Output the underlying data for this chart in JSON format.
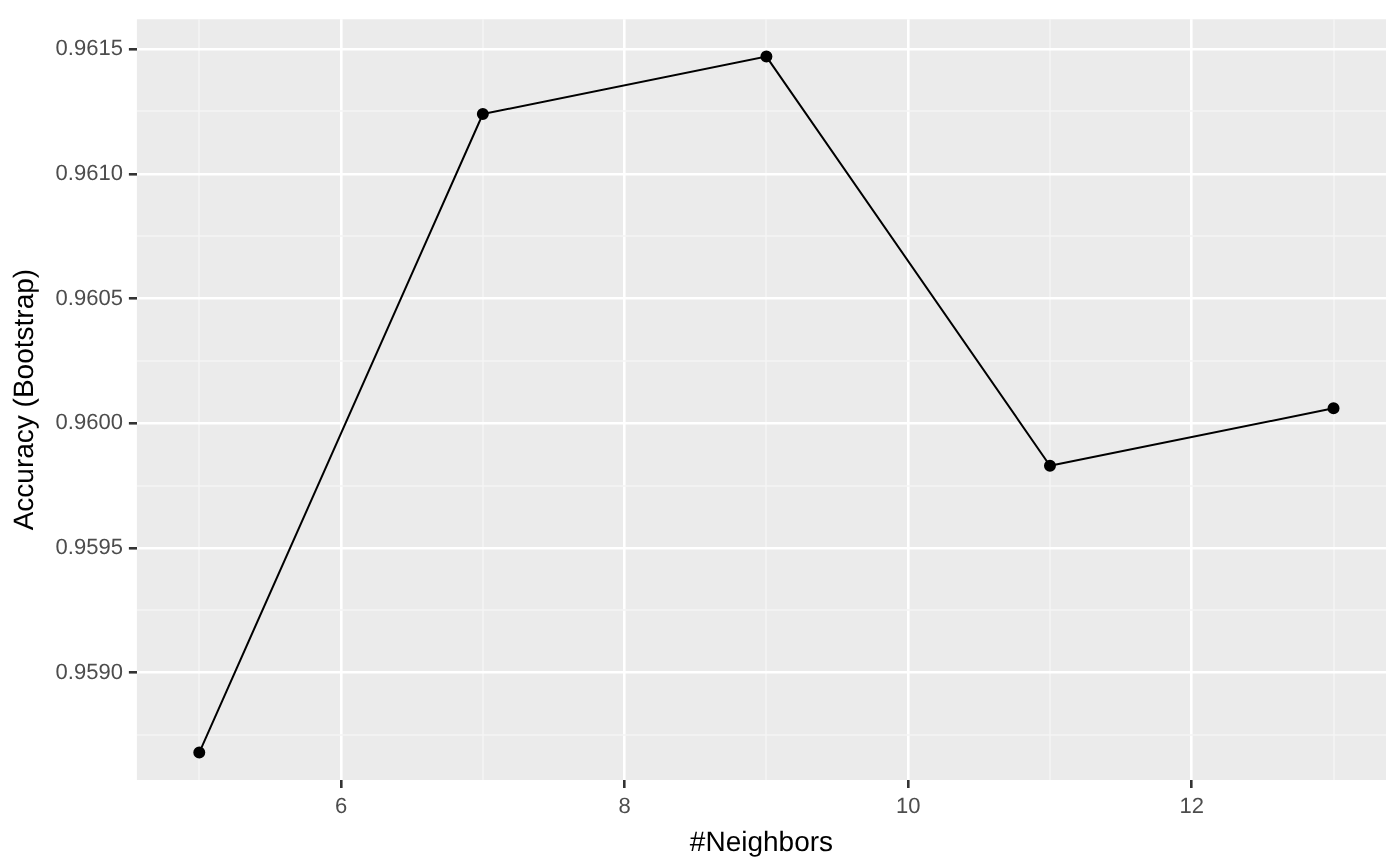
{
  "chart_data": {
    "type": "line",
    "xlabel": "#Neighbors",
    "ylabel": "Accuracy (Bootstrap)",
    "x": [
      5,
      7,
      9,
      11,
      13
    ],
    "series": [
      {
        "color": "#000000",
        "values": [
          0.95868,
          0.96124,
          0.96147,
          0.95983,
          0.96006
        ]
      }
    ],
    "xlim": [
      4.56,
      13.37
    ],
    "xticks": [
      6,
      8,
      10,
      12
    ],
    "ylim": [
      0.95857,
      0.96162
    ],
    "yticks": [
      {
        "value": 0.959,
        "label": "0.9590"
      },
      0.9595,
      {
        "value": 0.96,
        "label": "0.9600"
      },
      0.9605,
      {
        "value": 0.961,
        "label": "0.9610"
      },
      0.9615
    ],
    "grid": true,
    "legend": false,
    "marker": "circle",
    "line_style": "solid"
  }
}
